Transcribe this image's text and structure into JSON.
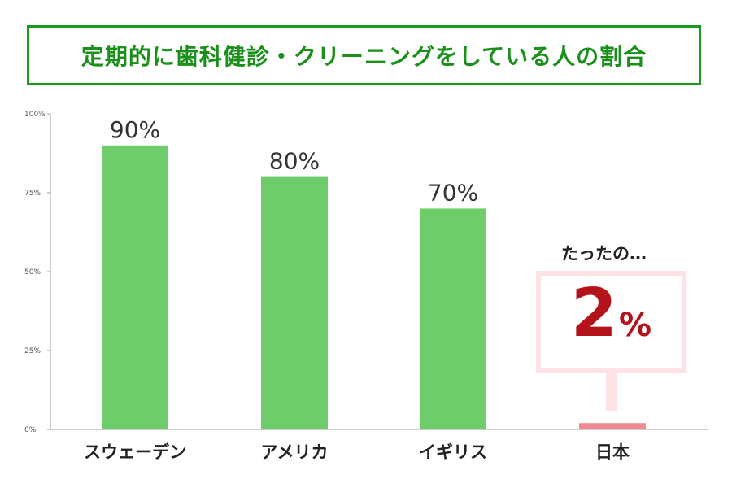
{
  "title": "定期的に歯科健診・クリーニングをしている人の割合",
  "chart_data": {
    "type": "bar",
    "categories": [
      "スウェーデン",
      "アメリカ",
      "イギリス",
      "日本"
    ],
    "values": [
      90,
      80,
      70,
      2
    ],
    "value_labels": [
      "90%",
      "80%",
      "70%",
      ""
    ],
    "ylim": [
      0,
      100
    ],
    "yticks": [
      0,
      25,
      50,
      75,
      100
    ],
    "ytick_labels": [
      "0%",
      "25%",
      "50%",
      "75%",
      "100%"
    ],
    "grid": false,
    "colors": {
      "bar_default": "#6ecd6a",
      "bar_highlight": "#f08a90",
      "label_highlight": "#d9534f",
      "axis": "#999999"
    },
    "highlight_index": 3
  },
  "callout": {
    "lead_text": "たったの…",
    "value": "2",
    "unit": "%"
  },
  "colors": {
    "title": "#1a8f1a",
    "title_border": "#1a9a1a",
    "callout_value": "#b3141c",
    "callout_bg": "#fde3e5"
  }
}
